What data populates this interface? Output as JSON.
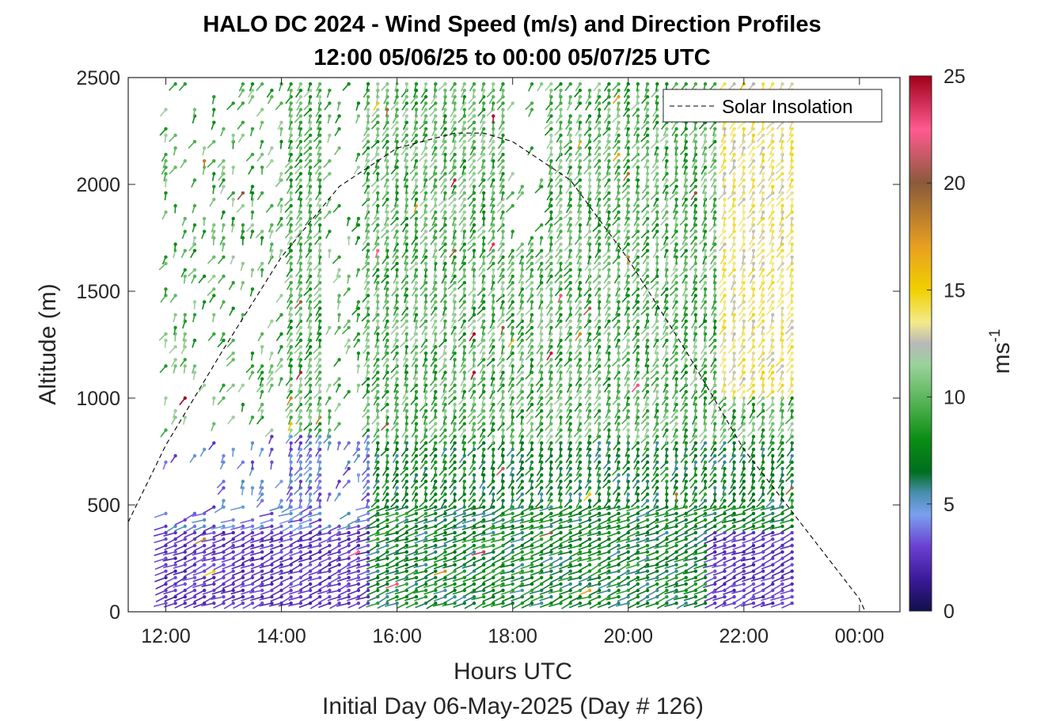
{
  "chart_data": {
    "type": "wind-barb-profile",
    "title": "HALO DC 2024 - Wind Speed (m/s) and Direction Profiles",
    "subtitle": "12:00 05/06/25 to 00:00 05/07/25  UTC",
    "xlabel": "Hours UTC",
    "ylabel": "Altitude (m)",
    "footer": "Initial Day 06-May-2025 (Day # 126)",
    "x_unit": "hours UTC",
    "xlim": [
      11.35,
      24.7
    ],
    "ylim": [
      0,
      2500
    ],
    "x_ticks": [
      12,
      14,
      16,
      18,
      20,
      22,
      24
    ],
    "x_tick_labels": [
      "12:00",
      "14:00",
      "16:00",
      "18:00",
      "20:00",
      "22:00",
      "00:00"
    ],
    "y_ticks": [
      0,
      500,
      1000,
      1500,
      2000,
      2500
    ],
    "y_tick_labels": [
      "0",
      "500",
      "1000",
      "1500",
      "2000",
      "2500"
    ],
    "colorbar": {
      "label": "ms",
      "label_exponent": "-1",
      "range": [
        0,
        25
      ],
      "ticks": [
        0,
        5,
        10,
        15,
        20,
        25
      ],
      "tick_labels": [
        "0",
        "5",
        "10",
        "15",
        "20",
        "25"
      ],
      "stops": [
        {
          "v": 0,
          "color": "#10104a"
        },
        {
          "v": 1.5,
          "color": "#3b1a9a"
        },
        {
          "v": 3,
          "color": "#6a3fd0"
        },
        {
          "v": 4.5,
          "color": "#7aa0f0"
        },
        {
          "v": 5.5,
          "color": "#4a8fb0"
        },
        {
          "v": 6.5,
          "color": "#006e1e"
        },
        {
          "v": 8,
          "color": "#0a8c14"
        },
        {
          "v": 9.5,
          "color": "#4aae4a"
        },
        {
          "v": 11.5,
          "color": "#9ad29a"
        },
        {
          "v": 12.5,
          "color": "#b8b8b8"
        },
        {
          "v": 13.5,
          "color": "#f4ea8a"
        },
        {
          "v": 15,
          "color": "#f0d000"
        },
        {
          "v": 17,
          "color": "#e8a020"
        },
        {
          "v": 20,
          "color": "#8a5a3a"
        },
        {
          "v": 22.5,
          "color": "#ff5a90"
        },
        {
          "v": 25,
          "color": "#a0001a"
        }
      ]
    },
    "legend": {
      "entries": [
        "Solar Insolation"
      ],
      "placement": "top-right",
      "style": "dashed black"
    },
    "solar_insolation": {
      "style": "dashed",
      "x": [
        11.35,
        12.0,
        13.0,
        14.0,
        15.0,
        16.0,
        17.0,
        17.5,
        18.0,
        19.0,
        20.0,
        21.0,
        22.0,
        23.0,
        24.0,
        24.1,
        24.7
      ],
      "y": [
        420,
        780,
        1230,
        1660,
        1990,
        2170,
        2240,
        2240,
        2200,
        2020,
        1650,
        1220,
        760,
        410,
        60,
        0,
        0
      ]
    },
    "wind_profile_summary": {
      "barb_times_hours": "12:00 to 22:55, about every 10 minutes",
      "barb_altitude_spacing_m": 30,
      "layers": [
        {
          "altitude_m": [
            0,
            400
          ],
          "speed_m_s": [
            1,
            3
          ],
          "note": "weak boundary-layer winds before 15:30 and after 21:30"
        },
        {
          "altitude_m": [
            0,
            800
          ],
          "speed_m_s": [
            6,
            9
          ],
          "note": "moderate low-level winds 15:30 to 21:30"
        },
        {
          "altitude_m": [
            800,
            2500
          ],
          "speed_m_s": [
            8,
            12
          ],
          "note": "widespread westerly flow aloft"
        },
        {
          "altitude_m": [
            1000,
            2500
          ],
          "speed_m_s": [
            13,
            15
          ],
          "note": "stronger winds after 21:40"
        }
      ]
    }
  }
}
